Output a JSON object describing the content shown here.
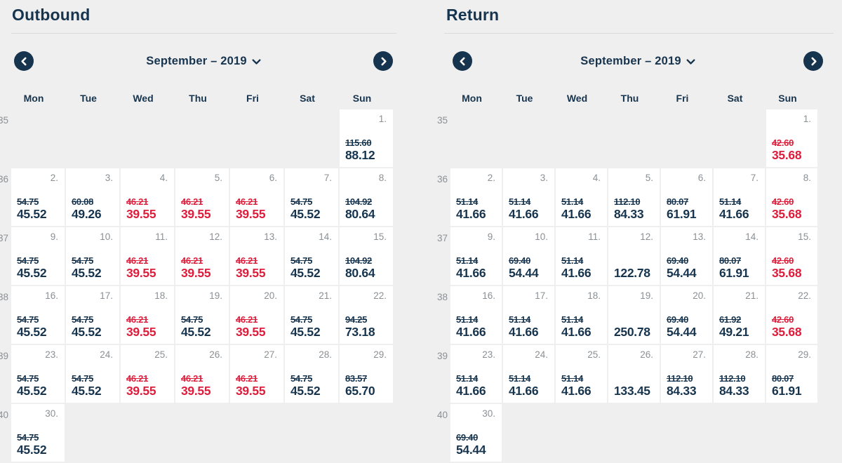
{
  "colors": {
    "navy": "#16344e",
    "red": "#dc1e3c",
    "background": "#f0efef",
    "cell": "#ffffff",
    "muted": "#8b9094"
  },
  "weekdays": [
    "Mon",
    "Tue",
    "Wed",
    "Thu",
    "Fri",
    "Sat",
    "Sun"
  ],
  "calendars": [
    {
      "id": "outbound",
      "title": "Outbound",
      "month_label": "September – 2019",
      "prev_icon": "chevron-left-icon",
      "next_icon": "chevron-right-icon",
      "dropdown_icon": "chevron-down-icon",
      "weeks": [
        {
          "num": "35",
          "days": [
            null,
            null,
            null,
            null,
            null,
            null,
            {
              "d": "1.",
              "old": "115.60",
              "price": "88.12",
              "tone": "navy"
            }
          ]
        },
        {
          "num": "36",
          "days": [
            {
              "d": "2.",
              "old": "54.75",
              "price": "45.52",
              "tone": "navy"
            },
            {
              "d": "3.",
              "old": "60.08",
              "price": "49.26",
              "tone": "navy"
            },
            {
              "d": "4.",
              "old": "46.21",
              "price": "39.55",
              "tone": "red"
            },
            {
              "d": "5.",
              "old": "46.21",
              "price": "39.55",
              "tone": "red"
            },
            {
              "d": "6.",
              "old": "46.21",
              "price": "39.55",
              "tone": "red"
            },
            {
              "d": "7.",
              "old": "54.75",
              "price": "45.52",
              "tone": "navy"
            },
            {
              "d": "8.",
              "old": "104.92",
              "price": "80.64",
              "tone": "navy"
            }
          ]
        },
        {
          "num": "37",
          "days": [
            {
              "d": "9.",
              "old": "54.75",
              "price": "45.52",
              "tone": "navy"
            },
            {
              "d": "10.",
              "old": "54.75",
              "price": "45.52",
              "tone": "navy"
            },
            {
              "d": "11.",
              "old": "46.21",
              "price": "39.55",
              "tone": "red"
            },
            {
              "d": "12.",
              "old": "46.21",
              "price": "39.55",
              "tone": "red"
            },
            {
              "d": "13.",
              "old": "46.21",
              "price": "39.55",
              "tone": "red"
            },
            {
              "d": "14.",
              "old": "54.75",
              "price": "45.52",
              "tone": "navy"
            },
            {
              "d": "15.",
              "old": "104.92",
              "price": "80.64",
              "tone": "navy"
            }
          ]
        },
        {
          "num": "38",
          "days": [
            {
              "d": "16.",
              "old": "54.75",
              "price": "45.52",
              "tone": "navy"
            },
            {
              "d": "17.",
              "old": "54.75",
              "price": "45.52",
              "tone": "navy"
            },
            {
              "d": "18.",
              "old": "46.21",
              "price": "39.55",
              "tone": "red"
            },
            {
              "d": "19.",
              "old": "54.75",
              "price": "45.52",
              "tone": "navy"
            },
            {
              "d": "20.",
              "old": "46.21",
              "price": "39.55",
              "tone": "red"
            },
            {
              "d": "21.",
              "old": "54.75",
              "price": "45.52",
              "tone": "navy"
            },
            {
              "d": "22.",
              "old": "94.25",
              "price": "73.18",
              "tone": "navy"
            }
          ]
        },
        {
          "num": "39",
          "days": [
            {
              "d": "23.",
              "old": "54.75",
              "price": "45.52",
              "tone": "navy"
            },
            {
              "d": "24.",
              "old": "54.75",
              "price": "45.52",
              "tone": "navy"
            },
            {
              "d": "25.",
              "old": "46.21",
              "price": "39.55",
              "tone": "red"
            },
            {
              "d": "26.",
              "old": "46.21",
              "price": "39.55",
              "tone": "red"
            },
            {
              "d": "27.",
              "old": "46.21",
              "price": "39.55",
              "tone": "red"
            },
            {
              "d": "28.",
              "old": "54.75",
              "price": "45.52",
              "tone": "navy"
            },
            {
              "d": "29.",
              "old": "83.57",
              "price": "65.70",
              "tone": "navy"
            }
          ]
        },
        {
          "num": "40",
          "days": [
            {
              "d": "30.",
              "old": "54.75",
              "price": "45.52",
              "tone": "navy"
            },
            null,
            null,
            null,
            null,
            null,
            null
          ]
        }
      ]
    },
    {
      "id": "return",
      "title": "Return",
      "month_label": "September – 2019",
      "prev_icon": "chevron-left-icon",
      "next_icon": "chevron-right-icon",
      "dropdown_icon": "chevron-down-icon",
      "weeks": [
        {
          "num": "35",
          "days": [
            null,
            null,
            null,
            null,
            null,
            null,
            {
              "d": "1.",
              "old": "42.60",
              "price": "35.68",
              "tone": "red"
            }
          ]
        },
        {
          "num": "36",
          "days": [
            {
              "d": "2.",
              "old": "51.14",
              "price": "41.66",
              "tone": "navy"
            },
            {
              "d": "3.",
              "old": "51.14",
              "price": "41.66",
              "tone": "navy"
            },
            {
              "d": "4.",
              "old": "51.14",
              "price": "41.66",
              "tone": "navy"
            },
            {
              "d": "5.",
              "old": "112.10",
              "price": "84.33",
              "tone": "navy"
            },
            {
              "d": "6.",
              "old": "80.07",
              "price": "61.91",
              "tone": "navy"
            },
            {
              "d": "7.",
              "old": "51.14",
              "price": "41.66",
              "tone": "navy"
            },
            {
              "d": "8.",
              "old": "42.60",
              "price": "35.68",
              "tone": "red"
            }
          ]
        },
        {
          "num": "37",
          "days": [
            {
              "d": "9.",
              "old": "51.14",
              "price": "41.66",
              "tone": "navy"
            },
            {
              "d": "10.",
              "old": "69.40",
              "price": "54.44",
              "tone": "navy"
            },
            {
              "d": "11.",
              "old": "51.14",
              "price": "41.66",
              "tone": "navy"
            },
            {
              "d": "12.",
              "old": null,
              "price": "122.78",
              "tone": "navy"
            },
            {
              "d": "13.",
              "old": "69.40",
              "price": "54.44",
              "tone": "navy"
            },
            {
              "d": "14.",
              "old": "80.07",
              "price": "61.91",
              "tone": "navy"
            },
            {
              "d": "15.",
              "old": "42.60",
              "price": "35.68",
              "tone": "red"
            }
          ]
        },
        {
          "num": "38",
          "days": [
            {
              "d": "16.",
              "old": "51.14",
              "price": "41.66",
              "tone": "navy"
            },
            {
              "d": "17.",
              "old": "51.14",
              "price": "41.66",
              "tone": "navy"
            },
            {
              "d": "18.",
              "old": "51.14",
              "price": "41.66",
              "tone": "navy"
            },
            {
              "d": "19.",
              "old": null,
              "price": "250.78",
              "tone": "navy"
            },
            {
              "d": "20.",
              "old": "69.40",
              "price": "54.44",
              "tone": "navy"
            },
            {
              "d": "21.",
              "old": "61.92",
              "price": "49.21",
              "tone": "navy"
            },
            {
              "d": "22.",
              "old": "42.60",
              "price": "35.68",
              "tone": "red"
            }
          ]
        },
        {
          "num": "39",
          "days": [
            {
              "d": "23.",
              "old": "51.14",
              "price": "41.66",
              "tone": "navy"
            },
            {
              "d": "24.",
              "old": "51.14",
              "price": "41.66",
              "tone": "navy"
            },
            {
              "d": "25.",
              "old": "51.14",
              "price": "41.66",
              "tone": "navy"
            },
            {
              "d": "26.",
              "old": null,
              "price": "133.45",
              "tone": "navy"
            },
            {
              "d": "27.",
              "old": "112.10",
              "price": "84.33",
              "tone": "navy"
            },
            {
              "d": "28.",
              "old": "112.10",
              "price": "84.33",
              "tone": "navy"
            },
            {
              "d": "29.",
              "old": "80.07",
              "price": "61.91",
              "tone": "navy"
            }
          ]
        },
        {
          "num": "40",
          "days": [
            {
              "d": "30.",
              "old": "69.40",
              "price": "54.44",
              "tone": "navy"
            },
            null,
            null,
            null,
            null,
            null,
            null
          ]
        }
      ]
    }
  ]
}
